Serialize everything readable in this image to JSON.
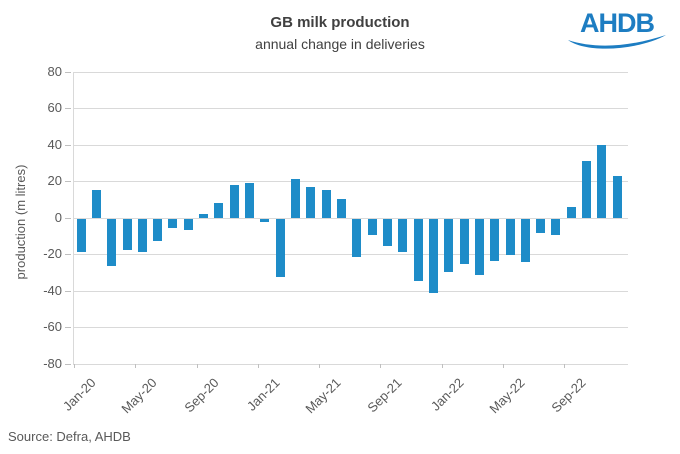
{
  "logo": {
    "label": "AHDB"
  },
  "footer": {
    "source": "Source: Defra, AHDB"
  },
  "colors": {
    "bar": "#1e8cc8",
    "logo_blue": "#1d7dc2",
    "grid": "#d9d9d9",
    "tick": "#bfbfbf",
    "axis_text": "#595959",
    "title_text": "#404040"
  },
  "chart_data": {
    "type": "bar",
    "title": "GB milk production",
    "subtitle": "annual change in deliveries",
    "ylabel": "production (m litres)",
    "ylim": [
      -80,
      80
    ],
    "ytick_step": 20,
    "grid": true,
    "legend": false,
    "categories": [
      "Jan-20",
      "Feb-20",
      "Mar-20",
      "Apr-20",
      "May-20",
      "Jun-20",
      "Jul-20",
      "Aug-20",
      "Sep-20",
      "Oct-20",
      "Nov-20",
      "Dec-20",
      "Jan-21",
      "Feb-21",
      "Mar-21",
      "Apr-21",
      "May-21",
      "Jun-21",
      "Jul-21",
      "Aug-21",
      "Sep-21",
      "Oct-21",
      "Nov-21",
      "Dec-21",
      "Jan-22",
      "Feb-22",
      "Mar-22",
      "Apr-22",
      "May-22",
      "Jun-22",
      "Jul-22",
      "Aug-22",
      "Sep-22",
      "Oct-22",
      "Nov-22",
      "Dec-22"
    ],
    "values": [
      -18,
      15,
      -26,
      -17,
      -18,
      -12,
      -5,
      -6,
      2,
      8,
      18,
      19,
      -2,
      -32,
      21,
      17,
      15,
      10,
      -21,
      -9,
      -15,
      -18,
      -34,
      -41,
      -29,
      -25,
      -31,
      -23,
      -20,
      -24,
      -8,
      -9,
      6,
      31,
      40,
      23
    ],
    "xtick_labels": [
      "Jan-20",
      "May-20",
      "Sep-20",
      "Jan-21",
      "May-21",
      "Sep-21",
      "Jan-22",
      "May-22",
      "Sep-22"
    ],
    "xtick_every": 4
  }
}
